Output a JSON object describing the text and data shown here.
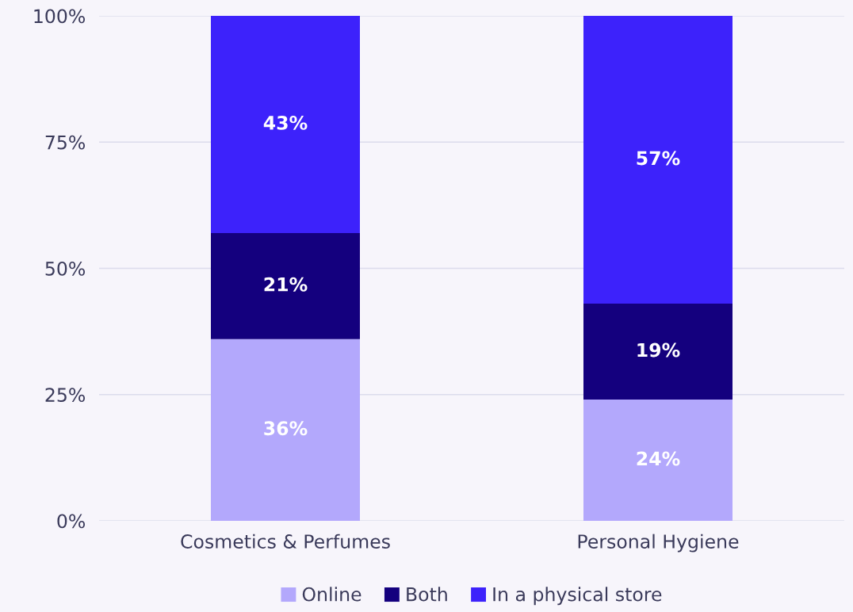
{
  "chart_data": {
    "type": "bar",
    "stacked": true,
    "categories": [
      "Cosmetics & Perfumes",
      "Personal Hygiene"
    ],
    "series": [
      {
        "name": "Online",
        "color": "#b3a8fc",
        "values": [
          36,
          24
        ],
        "value_labels": [
          "36%",
          "24%"
        ]
      },
      {
        "name": "Both",
        "color": "#14007e",
        "values": [
          21,
          19
        ],
        "value_labels": [
          "21%",
          "19%"
        ]
      },
      {
        "name": "In a physical store",
        "color": "#3d22fb",
        "values": [
          43,
          57
        ],
        "value_labels": [
          "43%",
          "57%"
        ]
      }
    ],
    "ylim": [
      0,
      100
    ],
    "yticks": [
      {
        "value": 0,
        "label": "0%"
      },
      {
        "value": 25,
        "label": "25%"
      },
      {
        "value": 50,
        "label": "50%"
      },
      {
        "value": 75,
        "label": "75%"
      },
      {
        "value": 100,
        "label": "100%"
      }
    ],
    "grid": "y",
    "legend": "bottom"
  }
}
